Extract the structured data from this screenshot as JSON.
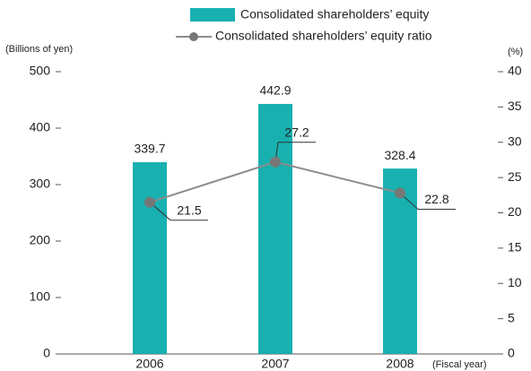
{
  "chart_data": {
    "type": "bar_line",
    "categories": [
      "2006",
      "2007",
      "2008"
    ],
    "series": [
      {
        "name": "Consolidated shareholders’ equity",
        "type": "bar",
        "color": "#19b0b0",
        "values": [
          339.7,
          442.9,
          328.4
        ]
      },
      {
        "name": "Consolidated shareholders’ equity ratio",
        "type": "line",
        "axis": "y2",
        "color": "#8c8c8c",
        "marker_color": "#777777",
        "values": [
          21.5,
          27.2,
          22.8
        ]
      }
    ],
    "y_label": "(Billions of yen)",
    "y2_label": "(%)",
    "x_label": "(Fiscal year)",
    "ylim": [
      0,
      500
    ],
    "yticks": [
      0,
      100,
      200,
      300,
      400,
      500
    ],
    "y2lim": [
      0,
      40
    ],
    "y2ticks": [
      0,
      5,
      10,
      15,
      20,
      25,
      30,
      35,
      40
    ]
  }
}
